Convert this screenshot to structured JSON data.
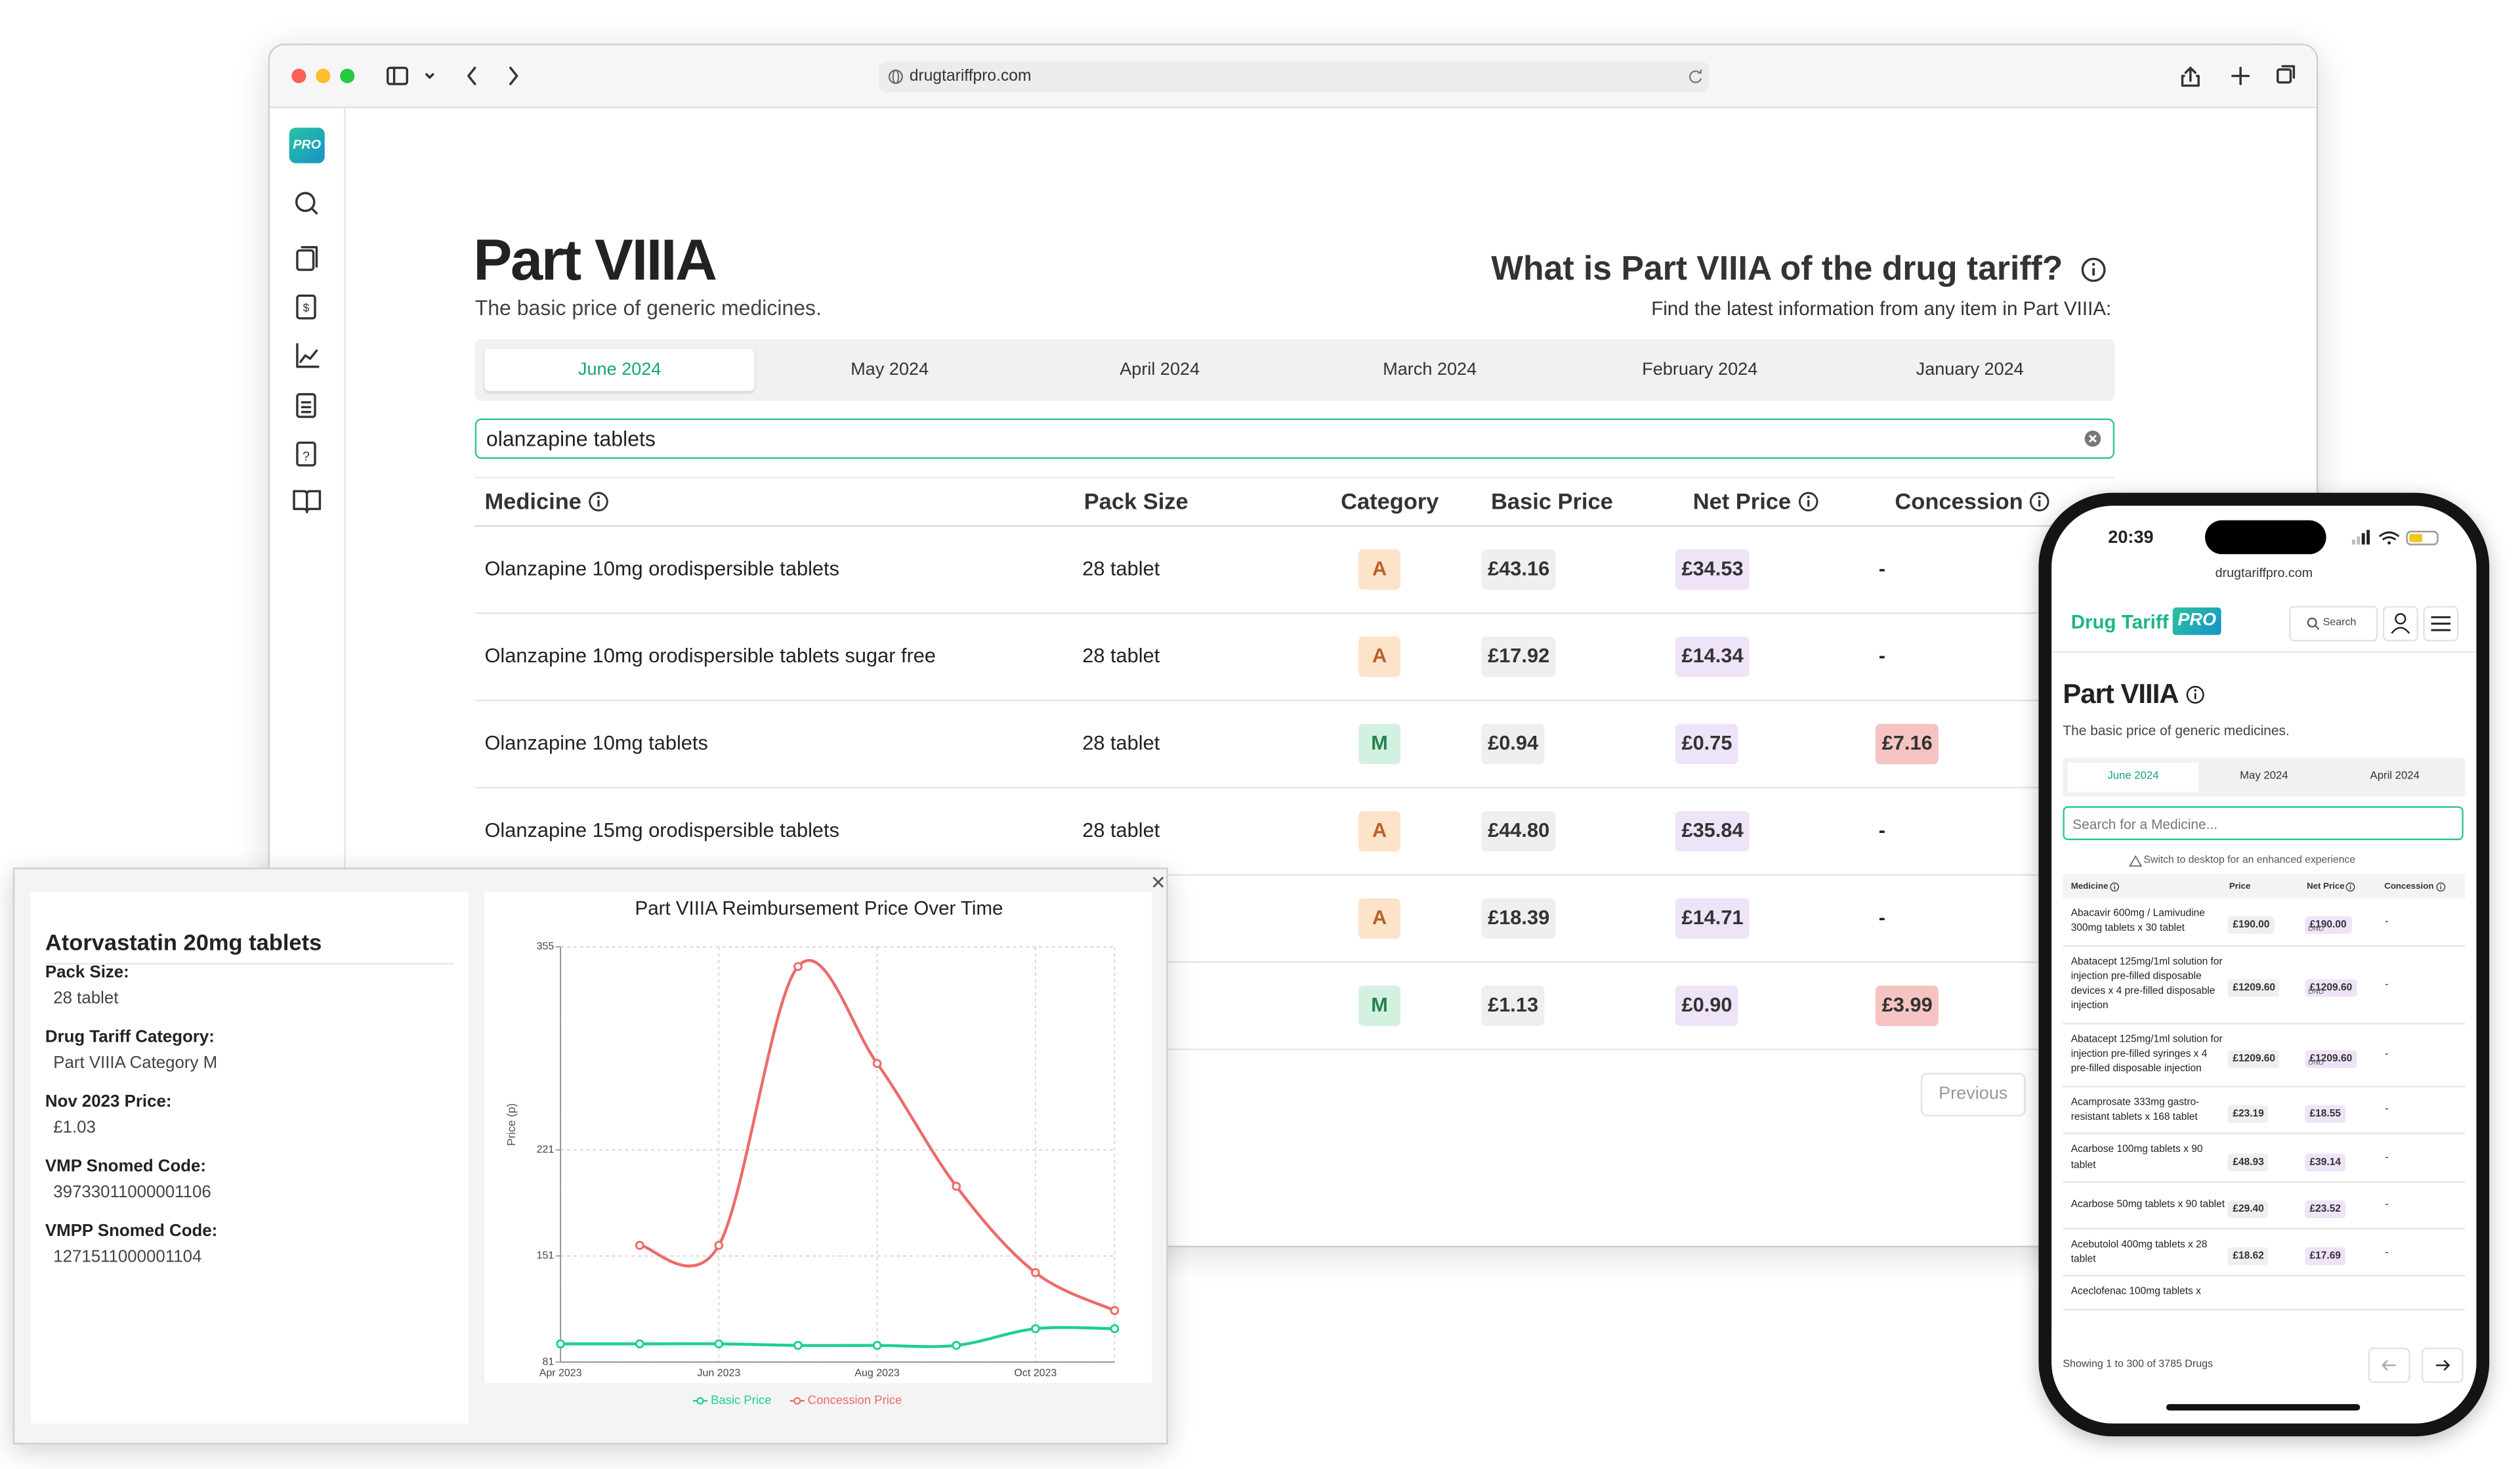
{
  "browser": {
    "url": "drugtariffpro.com"
  },
  "sidebar": {
    "logo": "PRO"
  },
  "page": {
    "title": "Part VIIIA",
    "subtitle": "The basic price of generic medicines.",
    "help_title": "What is Part VIIIA of the drug tariff?",
    "help_subtitle": "Find the latest information from any item in Part VIIIA:"
  },
  "tabs": [
    "June 2024",
    "May 2024",
    "April 2024",
    "March 2024",
    "February 2024",
    "January 2024"
  ],
  "search": {
    "value": "olanzapine tablets"
  },
  "table": {
    "headers": [
      {
        "key": "medicine",
        "text": "Medicine",
        "info": true
      },
      {
        "key": "pack_size",
        "text": "Pack Size"
      },
      {
        "key": "category",
        "text": "Category"
      },
      {
        "key": "basic_price",
        "text": "Basic Price"
      },
      {
        "key": "net_price",
        "text": "Net Price",
        "info": true
      },
      {
        "key": "concession",
        "text": "Concession",
        "info": true
      }
    ],
    "rows": [
      {
        "medicine": "Olanzapine 10mg orodispersible tablets",
        "pack_size": "28 tablet",
        "category": "A",
        "basic_price": "£43.16",
        "net_price": "£34.53",
        "concession": "-"
      },
      {
        "medicine": "Olanzapine 10mg orodispersible tablets sugar free",
        "pack_size": "28 tablet",
        "category": "A",
        "basic_price": "£17.92",
        "net_price": "£14.34",
        "concession": "-"
      },
      {
        "medicine": "Olanzapine 10mg tablets",
        "pack_size": "28 tablet",
        "category": "M",
        "basic_price": "£0.94",
        "net_price": "£0.75",
        "concession": "£7.16"
      },
      {
        "medicine": "Olanzapine 15mg orodispersible tablets",
        "pack_size": "28 tablet",
        "category": "A",
        "basic_price": "£44.80",
        "net_price": "£35.84",
        "concession": "-"
      },
      {
        "category": "A",
        "basic_price": "£18.39",
        "net_price": "£14.71",
        "concession": "-"
      },
      {
        "category": "M",
        "basic_price": "£1.13",
        "net_price": "£0.90",
        "concession": "£3.99"
      }
    ],
    "category_styles": {
      "A": {
        "bg": "#fde3c9",
        "fg": "#b8612b"
      },
      "M": {
        "bg": "#d3f1e0",
        "fg": "#24824d"
      }
    }
  },
  "pagination": {
    "previous": "Previous"
  },
  "popup": {
    "title": "Atorvastatin 20mg tablets",
    "fields": [
      {
        "label": "Pack Size:",
        "value": "28 tablet"
      },
      {
        "label": "Drug Tariff Category:",
        "value": "Part VIIIA Category M"
      },
      {
        "label": "Nov 2023 Price:",
        "value": "£1.03"
      },
      {
        "label": "VMP Snomed Code:",
        "value": "39733011000001106"
      },
      {
        "label": "VMPP Snomed Code:",
        "value": "1271511000001104"
      }
    ],
    "chart": {
      "type": "line",
      "title": "Part VIIIA Reimbursement Price Over Time",
      "y_label": "Price (p)",
      "categories": [
        "Apr 2023",
        null,
        "Jun 2023",
        null,
        "Aug 2023",
        null,
        "Oct 2023",
        null
      ],
      "series": [
        {
          "name": "Basic Price",
          "color": "#1fcf8f",
          "values": [
            93,
            93,
            93,
            92,
            92,
            92,
            103,
            103
          ]
        },
        {
          "name": "Concession Price",
          "color": "#ec6b6b",
          "values": [
            null,
            158,
            158,
            342,
            278,
            197,
            140,
            115
          ]
        }
      ],
      "ylim": [
        81,
        355
      ],
      "yticks": [
        81,
        151,
        221,
        355
      ],
      "grid": true
    }
  },
  "phone": {
    "time": "20:39",
    "url": "drugtariffpro.com",
    "logo": "Drug Tariff",
    "logo_badge": "PRO",
    "search_button": "Search",
    "title": "Part VIIIA",
    "subtitle": "The basic price of generic medicines.",
    "tabs": [
      "June 2024",
      "May 2024",
      "April 2024"
    ],
    "search_placeholder": "Search for a Medicine...",
    "notice": "Switch to desktop for an enhanced experience",
    "headers": [
      {
        "text": "Medicine",
        "info": true
      },
      {
        "text": "Price"
      },
      {
        "text": "Net Price",
        "info": true
      },
      {
        "text": "Concession",
        "info": true
      }
    ],
    "rows": [
      {
        "medicine": "Abacavir 600mg / Lamivudine 300mg tablets x 30 tablet",
        "price": "£190.00",
        "net_price": "£190.00",
        "net_note": "DND",
        "concession": "-"
      },
      {
        "medicine": "Abatacept 125mg/1ml solution for injection pre-filled disposable devices x 4 pre-filled disposable injection",
        "price": "£1209.60",
        "net_price": "£1209.60",
        "net_note": "DND",
        "concession": "-"
      },
      {
        "medicine": "Abatacept 125mg/1ml solution for injection pre-filled syringes x 4 pre-filled disposable injection",
        "price": "£1209.60",
        "net_price": "£1209.60",
        "net_note": "DND",
        "concession": "-"
      },
      {
        "medicine": "Acamprosate 333mg gastro-resistant tablets x 168 tablet",
        "price": "£23.19",
        "net_price": "£18.55",
        "concession": "-"
      },
      {
        "medicine": "Acarbose 100mg tablets x 90 tablet",
        "price": "£48.93",
        "net_price": "£39.14",
        "concession": "-"
      },
      {
        "medicine": "Acarbose 50mg tablets x 90 tablet",
        "price": "£29.40",
        "net_price": "£23.52",
        "concession": "-"
      },
      {
        "medicine": "Acebutolol 400mg tablets x 28 tablet",
        "price": "£18.62",
        "net_price": "£17.69",
        "concession": "-"
      },
      {
        "medicine": "Aceclofenac 100mg tablets x"
      }
    ],
    "footer": "Showing 1 to 300 of 3785 Drugs"
  }
}
